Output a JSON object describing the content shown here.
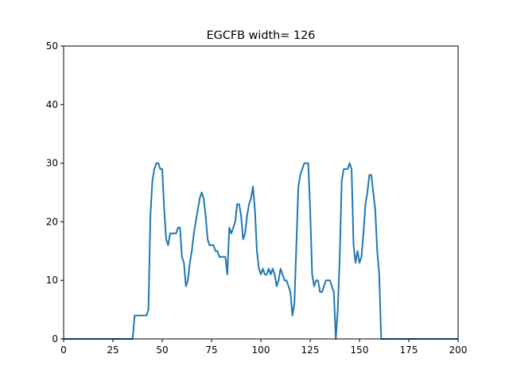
{
  "chart_data": {
    "type": "line",
    "title": "EGCFB width= 126",
    "xlabel": "",
    "ylabel": "",
    "xlim": [
      0,
      200
    ],
    "ylim": [
      0,
      50
    ],
    "xticks": [
      0,
      25,
      50,
      75,
      100,
      125,
      150,
      175,
      200
    ],
    "yticks": [
      0,
      10,
      20,
      30,
      40,
      50
    ],
    "grid": false,
    "colors": {
      "line": "#1f77b4",
      "axes": "#000000",
      "background": "#ffffff"
    },
    "series": [
      {
        "name": "",
        "x": [
          0,
          35,
          36,
          37,
          38,
          39,
          40,
          41,
          42,
          43,
          44,
          45,
          46,
          47,
          48,
          49,
          50,
          51,
          52,
          53,
          54,
          55,
          56,
          57,
          58,
          59,
          60,
          61,
          62,
          63,
          64,
          65,
          66,
          67,
          68,
          69,
          70,
          71,
          72,
          73,
          74,
          75,
          76,
          77,
          78,
          79,
          80,
          81,
          82,
          83,
          84,
          85,
          86,
          87,
          88,
          89,
          90,
          91,
          92,
          93,
          94,
          95,
          96,
          97,
          98,
          99,
          100,
          101,
          102,
          103,
          104,
          105,
          106,
          107,
          108,
          109,
          110,
          111,
          112,
          113,
          114,
          115,
          116,
          117,
          118,
          119,
          120,
          121,
          122,
          123,
          124,
          125,
          126,
          127,
          128,
          129,
          130,
          131,
          132,
          133,
          134,
          135,
          136,
          137,
          138,
          139,
          140,
          141,
          142,
          143,
          144,
          145,
          146,
          147,
          148,
          149,
          150,
          151,
          152,
          153,
          154,
          155,
          156,
          157,
          158,
          159,
          160,
          161,
          200
        ],
        "values": [
          0,
          0,
          4,
          4,
          4,
          4,
          4,
          4,
          4,
          5,
          21,
          27,
          29,
          30,
          30,
          29,
          29,
          22,
          17,
          16,
          18,
          18,
          18,
          18,
          19,
          19,
          14,
          13,
          9,
          10,
          13,
          15,
          18,
          20,
          22,
          24,
          25,
          24,
          21,
          17,
          16,
          16,
          16,
          15,
          15,
          14,
          14,
          14,
          14,
          11,
          19,
          18,
          19,
          20,
          23,
          23,
          21,
          17,
          18,
          21,
          23,
          24,
          26,
          22,
          15,
          12,
          11,
          12,
          11,
          11,
          12,
          11,
          12,
          11,
          9,
          10,
          12,
          11,
          10,
          10,
          9,
          8,
          4,
          6,
          16,
          26,
          28,
          29,
          30,
          30,
          30,
          22,
          11,
          9,
          10,
          10,
          8,
          8,
          9,
          10,
          10,
          10,
          9,
          8,
          0,
          5,
          14,
          27,
          29,
          29,
          29,
          30,
          29,
          16,
          13,
          15,
          13,
          14,
          18,
          23,
          25,
          28,
          28,
          25,
          22,
          15,
          11,
          0,
          0
        ]
      }
    ]
  }
}
